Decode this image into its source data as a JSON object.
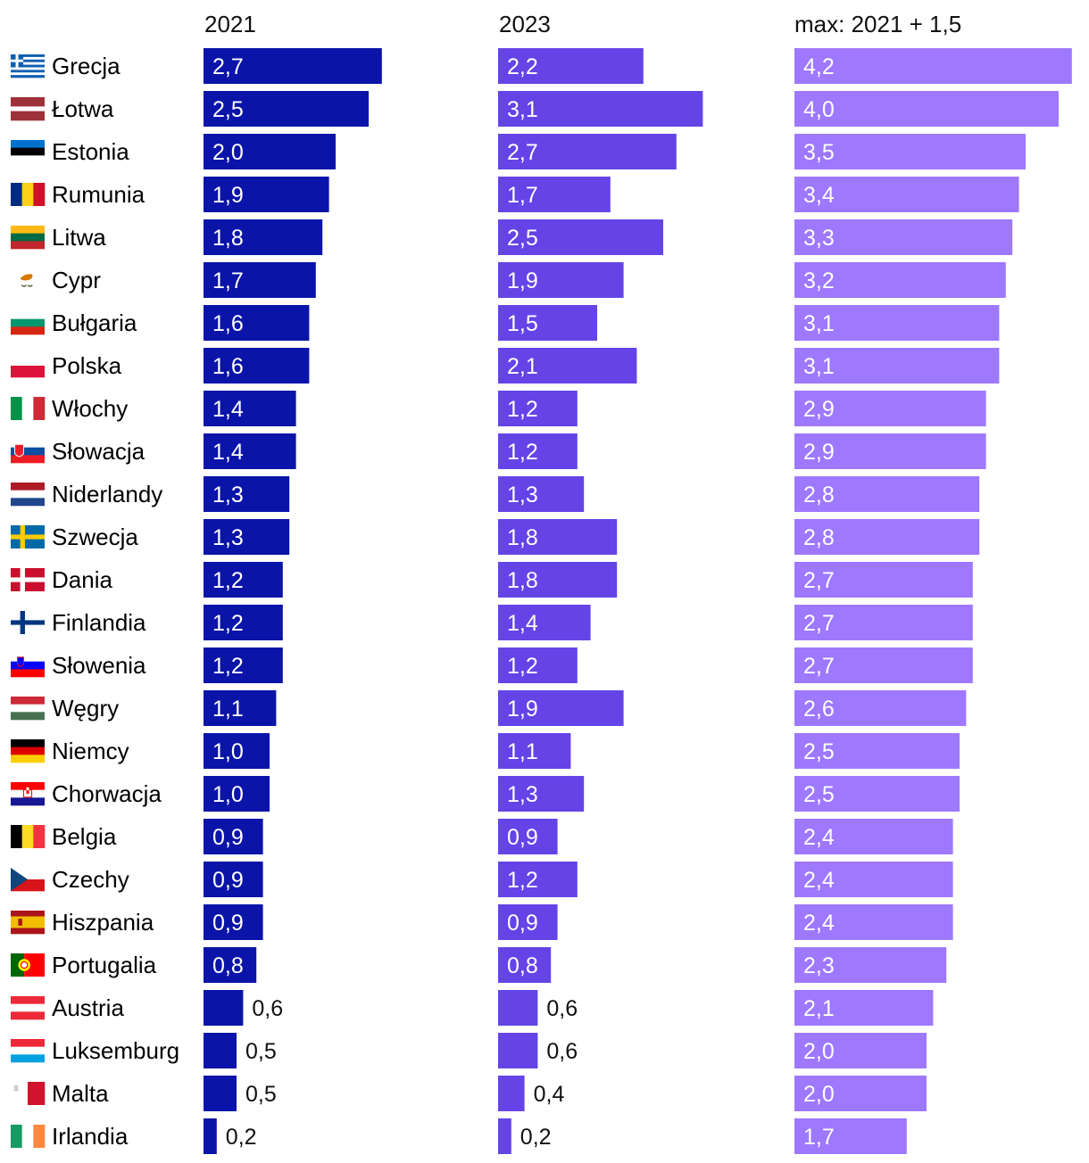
{
  "chart_data": {
    "type": "bar",
    "orientation": "horizontal",
    "panels": [
      {
        "title": "2021",
        "color": "#0a14a8"
      },
      {
        "title": "2023",
        "color": "#6444e6"
      },
      {
        "title": "max: 2021 + 1,5",
        "color": "#9e78ff"
      }
    ],
    "categories": [
      "Grecja",
      "Łotwa",
      "Estonia",
      "Rumunia",
      "Litwa",
      "Cypr",
      "Bułgaria",
      "Polska",
      "Włochy",
      "Słowacja",
      "Niderlandy",
      "Szwecja",
      "Dania",
      "Finlandia",
      "Słowenia",
      "Węgry",
      "Niemcy",
      "Chorwacja",
      "Belgia",
      "Czechy",
      "Hiszpania",
      "Portugalia",
      "Austria",
      "Luksemburg",
      "Malta",
      "Irlandia"
    ],
    "series": [
      {
        "name": "2021",
        "values": [
          2.7,
          2.5,
          2.0,
          1.9,
          1.8,
          1.7,
          1.6,
          1.6,
          1.4,
          1.4,
          1.3,
          1.3,
          1.2,
          1.2,
          1.2,
          1.1,
          1.0,
          1.0,
          0.9,
          0.9,
          0.9,
          0.8,
          0.6,
          0.5,
          0.5,
          0.2
        ],
        "labels": [
          "2,7",
          "2,5",
          "2,0",
          "1,9",
          "1,8",
          "1,7",
          "1,6",
          "1,6",
          "1,4",
          "1,4",
          "1,3",
          "1,3",
          "1,2",
          "1,2",
          "1,2",
          "1,1",
          "1,0",
          "1,0",
          "0,9",
          "0,9",
          "0,9",
          "0,8",
          "0,6",
          "0,5",
          "0,5",
          "0,2"
        ]
      },
      {
        "name": "2023",
        "values": [
          2.2,
          3.1,
          2.7,
          1.7,
          2.5,
          1.9,
          1.5,
          2.1,
          1.2,
          1.2,
          1.3,
          1.8,
          1.8,
          1.4,
          1.2,
          1.9,
          1.1,
          1.3,
          0.9,
          1.2,
          0.9,
          0.8,
          0.6,
          0.6,
          0.4,
          0.2
        ],
        "labels": [
          "2,2",
          "3,1",
          "2,7",
          "1,7",
          "2,5",
          "1,9",
          "1,5",
          "2,1",
          "1,2",
          "1,2",
          "1,3",
          "1,8",
          "1,8",
          "1,4",
          "1,2",
          "1,9",
          "1,1",
          "1,3",
          "0,9",
          "1,2",
          "0,9",
          "0,8",
          "0,6",
          "0,6",
          "0,4",
          "0,2"
        ]
      },
      {
        "name": "max: 2021 + 1,5",
        "values": [
          4.2,
          4.0,
          3.5,
          3.4,
          3.3,
          3.2,
          3.1,
          3.1,
          2.9,
          2.9,
          2.8,
          2.8,
          2.7,
          2.7,
          2.7,
          2.6,
          2.5,
          2.5,
          2.4,
          2.4,
          2.4,
          2.3,
          2.1,
          2.0,
          2.0,
          1.7
        ],
        "labels": [
          "4,2",
          "4,0",
          "3,5",
          "3,4",
          "3,3",
          "3,2",
          "3,1",
          "3,1",
          "2,9",
          "2,9",
          "2,8",
          "2,8",
          "2,7",
          "2,7",
          "2,7",
          "2,6",
          "2,5",
          "2,5",
          "2,4",
          "2,4",
          "2,4",
          "2,3",
          "2,1",
          "2,0",
          "2,0",
          "1,7"
        ]
      }
    ],
    "flags": [
      "flag-greece-icon",
      "flag-latvia-icon",
      "flag-estonia-icon",
      "flag-romania-icon",
      "flag-lithuania-icon",
      "flag-cyprus-icon",
      "flag-bulgaria-icon",
      "flag-poland-icon",
      "flag-italy-icon",
      "flag-slovakia-icon",
      "flag-netherlands-icon",
      "flag-sweden-icon",
      "flag-denmark-icon",
      "flag-finland-icon",
      "flag-slovenia-icon",
      "flag-hungary-icon",
      "flag-germany-icon",
      "flag-croatia-icon",
      "flag-belgium-icon",
      "flag-czechia-icon",
      "flag-spain-icon",
      "flag-portugal-icon",
      "flag-austria-icon",
      "flag-luxembourg-icon",
      "flag-malta-icon",
      "flag-ireland-icon"
    ],
    "legend": "none",
    "grid": false
  }
}
